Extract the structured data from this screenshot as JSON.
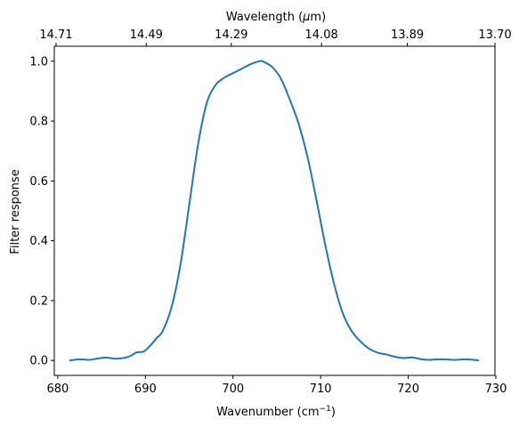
{
  "chart_data": {
    "type": "line",
    "title": "",
    "xlabel_main": "Wavenumber (cm",
    "xlabel_sup": "−1",
    "xlabel_tail": ")",
    "xlabel_top_main": "Wavelength (",
    "xlabel_top_mu": "μ",
    "xlabel_top_tail": "m)",
    "ylabel": "Filter response",
    "xlim": [
      679.6,
      729.9
    ],
    "ylim": [
      -0.05,
      1.05
    ],
    "x_ticks": [
      680,
      690,
      700,
      710,
      720,
      730
    ],
    "x_tick_labels": [
      "680",
      "690",
      "700",
      "710",
      "720",
      "730"
    ],
    "y_ticks": [
      0.0,
      0.2,
      0.4,
      0.6,
      0.8,
      1.0
    ],
    "y_tick_labels": [
      "0.0",
      "0.2",
      "0.4",
      "0.6",
      "0.8",
      "1.0"
    ],
    "top_ticks": [
      679.8,
      690.1,
      699.8,
      710.1,
      719.9,
      729.9
    ],
    "top_tick_labels": [
      "14.71",
      "14.49",
      "14.29",
      "14.08",
      "13.89",
      "13.70"
    ],
    "grid": false,
    "legend": "none",
    "series": [
      {
        "color": "#1f77b4",
        "x": [
          681.4,
          682.5,
          683.5,
          684.5,
          685.5,
          686.5,
          687.5,
          688.3,
          689.0,
          689.8,
          690.5,
          691.3,
          692.0,
          693.0,
          694.0,
          695.0,
          696.0,
          697.0,
          698.0,
          699.0,
          700.0,
          701.0,
          702.0,
          703.0,
          703.5,
          704.5,
          705.5,
          706.5,
          707.5,
          708.5,
          709.5,
          710.5,
          711.5,
          712.5,
          713.5,
          714.5,
          715.5,
          716.5,
          717.5,
          718.5,
          719.5,
          720.5,
          721.5,
          722.5,
          723.5,
          724.5,
          725.5,
          726.5,
          727.5,
          728.0
        ],
        "y": [
          0.0,
          0.004,
          0.002,
          0.006,
          0.01,
          0.006,
          0.008,
          0.015,
          0.027,
          0.03,
          0.048,
          0.075,
          0.1,
          0.18,
          0.32,
          0.52,
          0.72,
          0.86,
          0.92,
          0.945,
          0.96,
          0.975,
          0.99,
          1.0,
          0.998,
          0.98,
          0.94,
          0.87,
          0.79,
          0.68,
          0.54,
          0.39,
          0.26,
          0.16,
          0.1,
          0.065,
          0.04,
          0.026,
          0.02,
          0.012,
          0.008,
          0.01,
          0.004,
          0.002,
          0.004,
          0.003,
          0.002,
          0.004,
          0.002,
          0.0
        ]
      }
    ]
  }
}
